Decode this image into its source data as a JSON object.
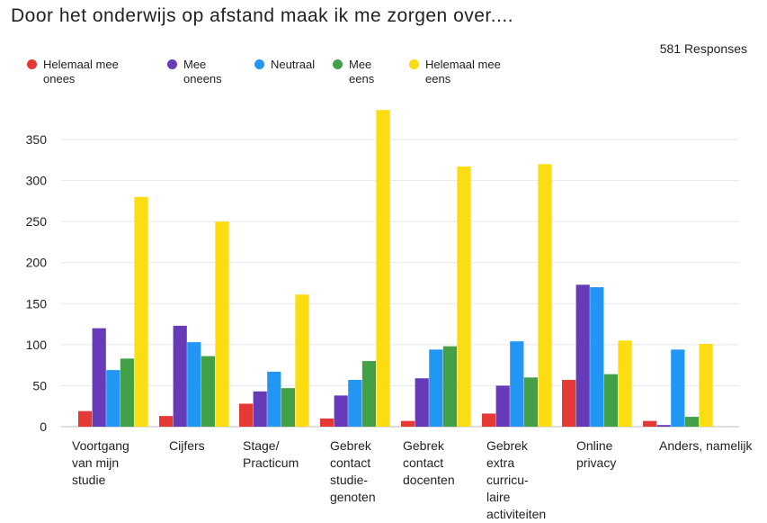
{
  "title": "Door het onderwijs op afstand maak ik me zorgen over....",
  "responses": "581 Responses",
  "chart_data": {
    "type": "bar",
    "title": "Door het onderwijs op afstand maak ik me zorgen over....",
    "categories": [
      [
        "Voortgang",
        "van mijn",
        "studie"
      ],
      [
        "Cijfers"
      ],
      [
        "Stage/",
        "Practicum"
      ],
      [
        "Gebrek",
        "contact",
        "studie-",
        "genoten"
      ],
      [
        "Gebrek",
        "contact",
        "docenten"
      ],
      [
        "Gebrek",
        "extra",
        "curricu-",
        "laire",
        "activiteiten"
      ],
      [
        "Online",
        "privacy"
      ],
      [
        "Anders, namelijk"
      ]
    ],
    "series": [
      {
        "name": "Helemaal mee onees",
        "color": "#e53935",
        "values": [
          19,
          13,
          28,
          10,
          7,
          16,
          57,
          7
        ]
      },
      {
        "name": "Mee oneens",
        "color": "#673ab7",
        "values": [
          120,
          123,
          43,
          38,
          59,
          50,
          173,
          2
        ]
      },
      {
        "name": "Neutraal",
        "color": "#2196f3",
        "values": [
          69,
          103,
          67,
          57,
          94,
          104,
          170,
          94
        ]
      },
      {
        "name": "Mee eens",
        "color": "#43a047",
        "values": [
          83,
          86,
          47,
          80,
          98,
          60,
          64,
          12
        ]
      },
      {
        "name": "Helemaal mee eens",
        "color": "#fbdd12",
        "values": [
          280,
          250,
          161,
          386,
          317,
          320,
          105,
          101
        ]
      }
    ],
    "legend_labels": [
      [
        "Helemaal mee",
        "onees"
      ],
      [
        "Mee",
        "oneens"
      ],
      [
        "Neutraal"
      ],
      [
        "Mee",
        "eens"
      ],
      [
        "Helemaal mee",
        "eens"
      ]
    ],
    "ylim": [
      0,
      386
    ],
    "yticks": [
      0,
      50,
      100,
      150,
      200,
      250,
      300,
      350
    ],
    "grid": true,
    "legend_position": "top-left"
  }
}
